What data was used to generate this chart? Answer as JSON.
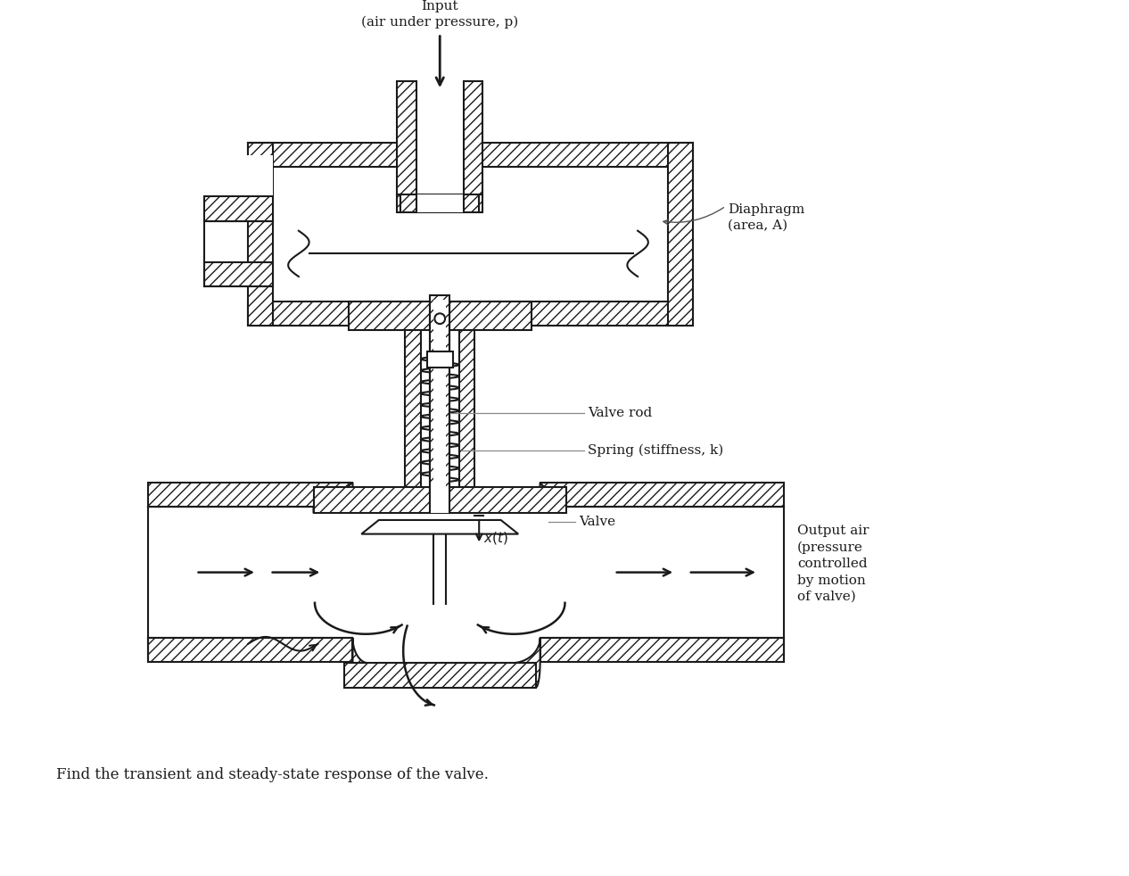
{
  "background_color": "#ffffff",
  "line_color": "#1a1a1a",
  "annotations": {
    "input_label": "Input\n(air under pressure, p)",
    "diaphragm_label": "Diaphragm\n(area, A)",
    "valve_rod_label": "Valve rod",
    "spring_label": "Spring (stiffness, k)",
    "valve_label": "Valve",
    "output_label": "Output air\n(pressure\ncontrolled\nby motion\nof valve)",
    "bottom_text": "Find the transient and steady-state response of the valve."
  },
  "figsize": [
    12.66,
    9.82
  ],
  "dpi": 100
}
